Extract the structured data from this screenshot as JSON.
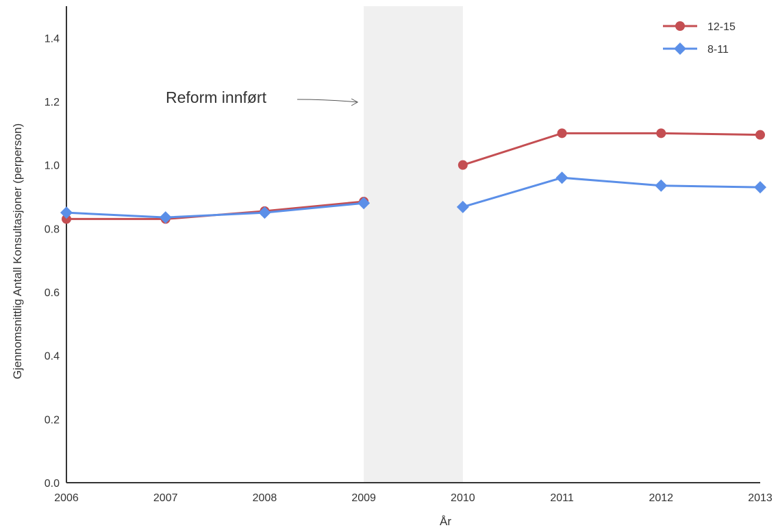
{
  "chart_data": {
    "type": "line",
    "xlabel": "År",
    "ylabel": "Gjennomsnittlig Antall Konsultasjoner (perperson)",
    "x": [
      2006,
      2007,
      2008,
      2009,
      2010,
      2011,
      2012,
      2013
    ],
    "xlim": [
      2006,
      2013
    ],
    "ylim": [
      0,
      1.5
    ],
    "yticks": [
      0.0,
      0.2,
      0.4,
      0.6,
      0.8,
      1.0,
      1.2,
      1.4
    ],
    "grid": false,
    "legend_position": "top-right",
    "shaded_region": [
      2009,
      2010
    ],
    "annotation": {
      "text": "Reform innført",
      "arrow_to": [
        2009,
        1.2
      ]
    },
    "series": [
      {
        "name": "12-15",
        "color": "#c44e52",
        "marker": "circle",
        "segments": [
          [
            [
              2006,
              0.83
            ],
            [
              2007,
              0.83
            ],
            [
              2008,
              0.855
            ],
            [
              2009,
              0.885
            ]
          ],
          [
            [
              2010,
              1.0
            ],
            [
              2011,
              1.1
            ],
            [
              2012,
              1.1
            ],
            [
              2013,
              1.095
            ]
          ]
        ]
      },
      {
        "name": "8-11",
        "color": "#5b8fe8",
        "marker": "diamond",
        "segments": [
          [
            [
              2006,
              0.85
            ],
            [
              2007,
              0.835
            ],
            [
              2008,
              0.85
            ],
            [
              2009,
              0.88
            ]
          ],
          [
            [
              2010,
              0.868
            ],
            [
              2011,
              0.96
            ],
            [
              2012,
              0.935
            ],
            [
              2013,
              0.93
            ]
          ]
        ]
      }
    ]
  }
}
